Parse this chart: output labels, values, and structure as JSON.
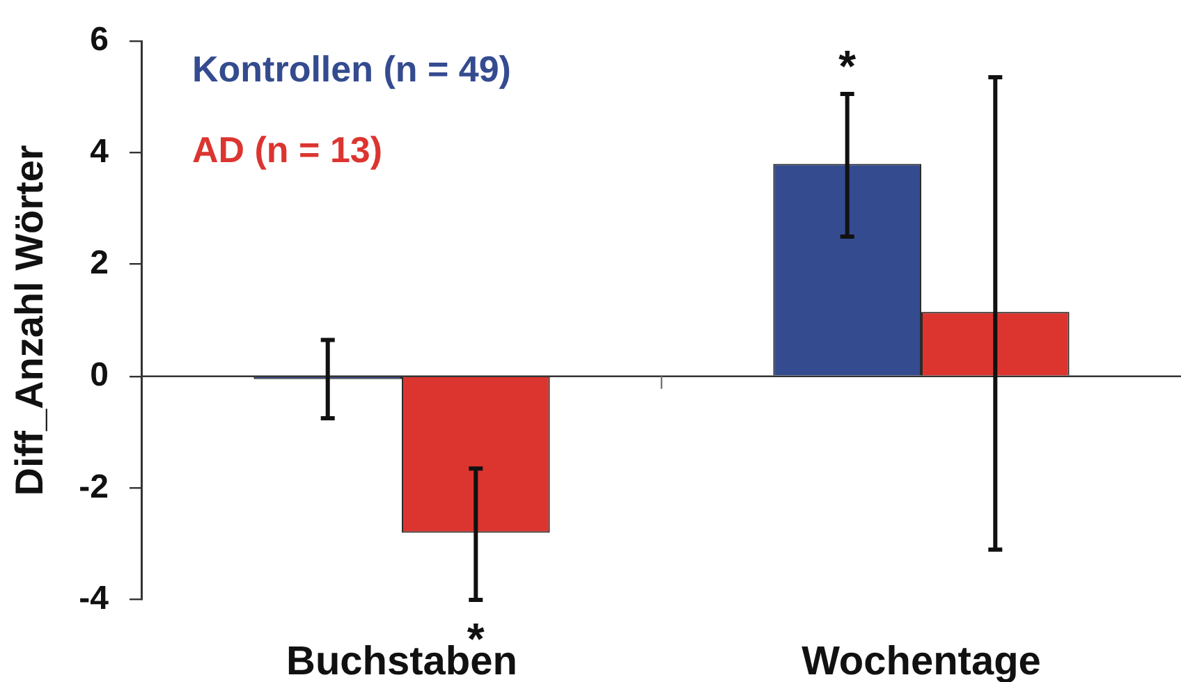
{
  "chart_data": {
    "type": "bar",
    "ylabel": "Diff_Anzahl Wörter",
    "categories": [
      "Buchstaben",
      "Wochentage"
    ],
    "series": [
      {
        "name": "Kontrollen (n = 49)",
        "color": "#344b8f",
        "values": [
          -0.05,
          3.8
        ],
        "errors": [
          [
            -0.75,
            0.65
          ],
          [
            2.5,
            5.05
          ]
        ]
      },
      {
        "name": "AD (n = 13)",
        "color": "#dc3530",
        "values": [
          -2.8,
          1.15
        ],
        "errors": [
          [
            -4.0,
            -1.65
          ],
          [
            -3.1,
            5.35
          ]
        ]
      }
    ],
    "ylim": [
      -4,
      6
    ],
    "yticks": [
      -4,
      -2,
      0,
      2,
      4,
      6
    ],
    "legend": "top left",
    "annotations": [
      "*",
      "*"
    ]
  }
}
